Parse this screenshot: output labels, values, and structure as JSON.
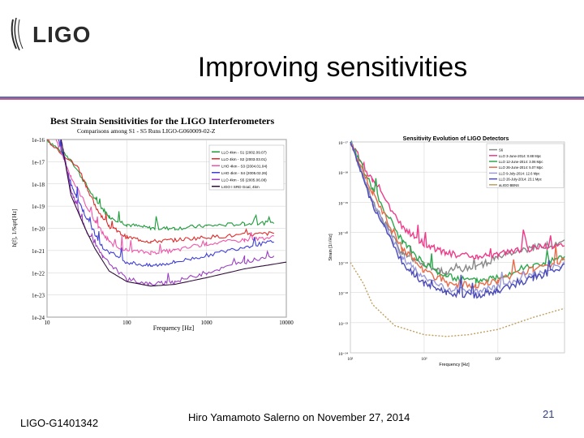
{
  "header": {
    "logo_text": "LIGO",
    "title": "Improving sensitivities"
  },
  "footer": {
    "doc_id": "LIGO-G1401342",
    "presenter": "Hiro Yamamoto Salerno on November 27, 2014",
    "page_number": "21"
  },
  "chart_data": [
    {
      "type": "line",
      "title": "Best Strain Sensitivities for the LIGO Interferometers",
      "subtitle": "Comparisons among S1 - S5 Runs     LIGO-G060009-02-Z",
      "xlabel": "Frequency [Hz]",
      "ylabel": "h[f], 1/Sqrt[Hz]",
      "x_scale": "log",
      "y_scale": "log",
      "xlim": [
        10,
        10000
      ],
      "ylim": [
        1e-24,
        1e-16
      ],
      "x_ticks": [
        "10",
        "100",
        "1000",
        "10000"
      ],
      "y_ticks": [
        "1e-16",
        "1e-17",
        "1e-18",
        "1e-19",
        "1e-20",
        "1e-21",
        "1e-22",
        "1e-23",
        "1e-24"
      ],
      "grid": true,
      "legend_position": "top-right",
      "series": [
        {
          "name": "LLO 4km - S1 (2002.09.07)",
          "color": "#1d9c3a",
          "x": [
            10,
            20,
            40,
            60,
            100,
            200,
            400,
            1000,
            3000,
            7000
          ],
          "y": [
            1e-16,
            1.2e-17,
            2e-19,
            3.4e-20,
            1.5e-20,
            1e-20,
            1e-20,
            1.3e-20,
            1.6e-20,
            1.8e-20
          ]
        },
        {
          "name": "LLO 4km - S2 (2003.03.01)",
          "color": "#e02b2b",
          "x": [
            10,
            25,
            40,
            60,
            100,
            200,
            400,
            1000,
            3000,
            7000
          ],
          "y": [
            1e-16,
            5e-18,
            1e-19,
            1.2e-20,
            4e-21,
            2.5e-21,
            3e-21,
            4e-21,
            5e-21,
            6e-21
          ]
        },
        {
          "name": "LHO 4km - S3 (2004.01.04)",
          "color": "#ee55aa",
          "x": [
            13,
            20,
            40,
            60,
            100,
            200,
            400,
            1000,
            3000,
            7000
          ],
          "y": [
            1e-16,
            2e-18,
            2e-20,
            2.3e-21,
            1e-21,
            8e-22,
            1e-21,
            2e-21,
            3e-21,
            4e-21
          ]
        },
        {
          "name": "LHO 4km - S4 (2005.02.26)",
          "color": "#3f3fd8",
          "x": [
            14,
            20,
            30,
            50,
            100,
            200,
            400,
            1000,
            3000,
            7000
          ],
          "y": [
            1e-16,
            1e-18,
            4e-20,
            1.3e-21,
            3e-22,
            2e-22,
            3e-22,
            6e-22,
            1.5e-21,
            2.5e-21
          ]
        },
        {
          "name": "LLO 4km - S5 (2005.06.08)",
          "color": "#9a3fc0",
          "x": [
            15,
            20,
            30,
            50,
            100,
            200,
            400,
            1000,
            3000,
            7000
          ],
          "y": [
            1e-16,
            5e-19,
            1e-20,
            5e-22,
            5e-23,
            3e-23,
            4e-23,
            1e-22,
            3e-22,
            6e-22
          ]
        },
        {
          "name": "LIGO I SRD Goal, 4km",
          "color": "#33103c",
          "x": [
            15,
            20,
            30,
            40,
            60,
            100,
            200,
            400,
            1000,
            3000,
            10000
          ],
          "y": [
            1e-16,
            3e-19,
            1e-20,
            1.2e-21,
            1.2e-22,
            4e-23,
            2.5e-23,
            3e-23,
            6e-23,
            1.5e-22,
            3e-22
          ]
        }
      ]
    },
    {
      "type": "line",
      "title": "Sensitivity Evolution of LIGO Detectors",
      "xlabel": "Frequency [Hz]",
      "ylabel": "Strain [1/√Hz]",
      "x_scale": "log",
      "y_scale": "log",
      "xlim": [
        10,
        8000
      ],
      "ylim": [
        1e-24,
        1e-17
      ],
      "x_ticks": [
        "10¹",
        "10²",
        "10³"
      ],
      "y_ticks": [
        "10⁻¹⁷",
        "10⁻¹⁸",
        "10⁻¹⁹",
        "10⁻²⁰",
        "10⁻²¹",
        "10⁻²²",
        "10⁻²³",
        "10⁻²⁴"
      ],
      "grid": true,
      "legend_position": "top-right",
      "series": [
        {
          "name": "S6",
          "color": "#888888",
          "x": [
            10,
            20,
            50,
            100,
            200,
            500,
            1000,
            3000,
            8000
          ],
          "y": [
            1e-17,
            1e-19,
            2e-21,
            8e-22,
            5e-22,
            7e-22,
            1.5e-21,
            3e-21,
            5e-21
          ]
        },
        {
          "name": "LLO 3-June-2014: 0.88 Mpc",
          "color": "#ee3b8a",
          "x": [
            10,
            20,
            50,
            100,
            200,
            500,
            1000,
            3000,
            8000
          ],
          "y": [
            1e-17,
            5e-19,
            1.5e-20,
            4e-21,
            2e-21,
            1.5e-21,
            2e-21,
            3e-21,
            4e-21
          ]
        },
        {
          "name": "LLO 12-June-2014: 3.06 Mpc",
          "color": "#2ea84e",
          "x": [
            10,
            20,
            50,
            100,
            200,
            500,
            1000,
            3000,
            8000
          ],
          "y": [
            1e-17,
            3e-19,
            5e-21,
            9e-22,
            3.5e-22,
            2.5e-22,
            3.5e-22,
            8e-22,
            1.5e-21
          ]
        },
        {
          "name": "LLO 26-June-2014: 5.07 Mpc",
          "color": "#e86b4a",
          "x": [
            10,
            20,
            50,
            100,
            200,
            500,
            1000,
            3000,
            8000
          ],
          "y": [
            1e-17,
            2e-19,
            3e-21,
            5e-22,
            2e-22,
            1.8e-22,
            2.5e-22,
            6e-22,
            1.2e-21
          ]
        },
        {
          "name": "LLO 9-July-2014: 12.6 Mpc",
          "color": "#9a9ad8",
          "x": [
            10,
            20,
            50,
            100,
            200,
            500,
            1000,
            3000,
            8000
          ],
          "y": [
            1e-17,
            1e-19,
            1.5e-21,
            3e-22,
            1.3e-22,
            1.1e-22,
            1.6e-22,
            4e-22,
            9e-22
          ]
        },
        {
          "name": "LLO 26-July-2014: 23.1 Mpc",
          "color": "#4a4ab8",
          "x": [
            10,
            20,
            50,
            100,
            200,
            500,
            1000,
            3000,
            8000
          ],
          "y": [
            1e-17,
            8e-20,
            1e-21,
            2e-22,
            1e-22,
            8e-23,
            1.2e-22,
            3e-22,
            7e-22
          ]
        },
        {
          "name": "aLIGO BBNS",
          "color": "#c0a060",
          "x": [
            10,
            15,
            20,
            40,
            100,
            200,
            400,
            1000,
            3000,
            8000
          ],
          "y": [
            1e-21,
            2e-22,
            4e-23,
            8e-24,
            4e-24,
            3.5e-24,
            4e-24,
            6e-24,
            1.5e-23,
            3e-23
          ]
        }
      ]
    }
  ],
  "colors": {
    "rule_top": "#5b6fb0",
    "rule_bottom": "#c25b8a",
    "page_number": "#2f3f7f"
  }
}
